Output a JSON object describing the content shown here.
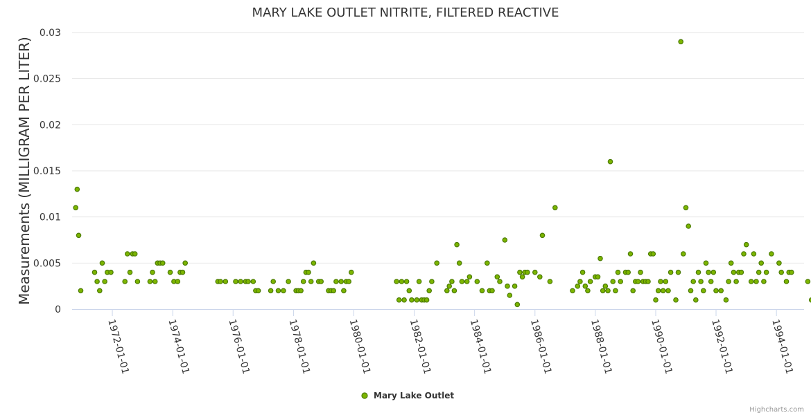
{
  "chart_data": {
    "type": "scatter",
    "title": "MARY LAKE OUTLET NITRITE, FILTERED REACTIVE",
    "ylabel": "Measurements (MILLIGRAM PER LITER)",
    "xlabel": "",
    "ylim": [
      0,
      0.03
    ],
    "y_ticks": [
      "0",
      "0.005",
      "0.01",
      "0.015",
      "0.02",
      "0.025",
      "0.03"
    ],
    "x_ticks": [
      "1972-01-01",
      "1974-01-01",
      "1976-01-01",
      "1978-01-01",
      "1980-01-01",
      "1982-01-01",
      "1984-01-01",
      "1986-01-01",
      "1988-01-01",
      "1990-01-01",
      "1992-01-01",
      "1994-01-01"
    ],
    "xlim": [
      "1970-09-01",
      "1994-12-01"
    ],
    "grid": true,
    "legend_position": "bottom-center",
    "series": [
      {
        "name": "Mary Lake Outlet",
        "color": "#7cb500",
        "points": [
          [
            "1970-10-15",
            0.011
          ],
          [
            "1970-11-01",
            0.013
          ],
          [
            "1970-11-20",
            0.008
          ],
          [
            "1970-12-15",
            0.002
          ],
          [
            "1971-06-01",
            0.004
          ],
          [
            "1971-07-01",
            0.003
          ],
          [
            "1971-08-01",
            0.002
          ],
          [
            "1971-09-01",
            0.005
          ],
          [
            "1971-10-01",
            0.003
          ],
          [
            "1971-11-01",
            0.004
          ],
          [
            "1971-12-15",
            0.004
          ],
          [
            "1972-06-01",
            0.003
          ],
          [
            "1972-07-01",
            0.006
          ],
          [
            "1972-08-01",
            0.004
          ],
          [
            "1972-09-01",
            0.006
          ],
          [
            "1972-10-01",
            0.006
          ],
          [
            "1972-11-01",
            0.003
          ],
          [
            "1973-04-01",
            0.003
          ],
          [
            "1973-05-01",
            0.004
          ],
          [
            "1973-06-01",
            0.003
          ],
          [
            "1973-07-01",
            0.005
          ],
          [
            "1973-08-01",
            0.005
          ],
          [
            "1973-09-01",
            0.005
          ],
          [
            "1973-12-01",
            0.004
          ],
          [
            "1974-01-15",
            0.003
          ],
          [
            "1974-03-01",
            0.003
          ],
          [
            "1974-04-01",
            0.004
          ],
          [
            "1974-05-01",
            0.004
          ],
          [
            "1974-06-01",
            0.005
          ],
          [
            "1975-07-01",
            0.003
          ],
          [
            "1975-08-01",
            0.003
          ],
          [
            "1975-10-01",
            0.003
          ],
          [
            "1976-02-01",
            0.003
          ],
          [
            "1976-04-01",
            0.003
          ],
          [
            "1976-06-01",
            0.003
          ],
          [
            "1976-07-01",
            0.003
          ],
          [
            "1976-09-01",
            0.003
          ],
          [
            "1976-10-01",
            0.002
          ],
          [
            "1976-11-01",
            0.002
          ],
          [
            "1977-04-01",
            0.002
          ],
          [
            "1977-05-01",
            0.003
          ],
          [
            "1977-07-01",
            0.002
          ],
          [
            "1977-09-01",
            0.002
          ],
          [
            "1977-11-01",
            0.003
          ],
          [
            "1978-02-01",
            0.002
          ],
          [
            "1978-03-01",
            0.002
          ],
          [
            "1978-04-01",
            0.002
          ],
          [
            "1978-05-01",
            0.003
          ],
          [
            "1978-06-01",
            0.004
          ],
          [
            "1978-07-01",
            0.004
          ],
          [
            "1978-08-01",
            0.003
          ],
          [
            "1978-09-01",
            0.005
          ],
          [
            "1978-11-01",
            0.003
          ],
          [
            "1978-12-01",
            0.003
          ],
          [
            "1979-03-01",
            0.002
          ],
          [
            "1979-04-01",
            0.002
          ],
          [
            "1979-05-01",
            0.002
          ],
          [
            "1979-06-01",
            0.003
          ],
          [
            "1979-08-01",
            0.003
          ],
          [
            "1979-09-01",
            0.002
          ],
          [
            "1979-10-01",
            0.003
          ],
          [
            "1979-11-01",
            0.003
          ],
          [
            "1979-12-01",
            0.004
          ],
          [
            "1981-06-01",
            0.003
          ],
          [
            "1981-07-01",
            0.001
          ],
          [
            "1981-08-01",
            0.003
          ],
          [
            "1981-09-01",
            0.001
          ],
          [
            "1981-10-01",
            0.003
          ],
          [
            "1981-11-01",
            0.002
          ],
          [
            "1981-12-01",
            0.001
          ],
          [
            "1982-02-01",
            0.001
          ],
          [
            "1982-03-01",
            0.003
          ],
          [
            "1982-04-01",
            0.001
          ],
          [
            "1982-05-01",
            0.001
          ],
          [
            "1982-06-01",
            0.001
          ],
          [
            "1982-07-01",
            0.002
          ],
          [
            "1982-08-01",
            0.003
          ],
          [
            "1982-10-01",
            0.005
          ],
          [
            "1983-02-01",
            0.002
          ],
          [
            "1983-03-01",
            0.0025
          ],
          [
            "1983-04-01",
            0.003
          ],
          [
            "1983-05-01",
            0.002
          ],
          [
            "1983-06-01",
            0.007
          ],
          [
            "1983-07-01",
            0.005
          ],
          [
            "1983-08-01",
            0.003
          ],
          [
            "1983-10-01",
            0.003
          ],
          [
            "1983-11-01",
            0.0035
          ],
          [
            "1984-02-01",
            0.003
          ],
          [
            "1984-04-01",
            0.002
          ],
          [
            "1984-06-01",
            0.005
          ],
          [
            "1984-07-01",
            0.002
          ],
          [
            "1984-08-01",
            0.002
          ],
          [
            "1984-10-01",
            0.0035
          ],
          [
            "1984-11-01",
            0.003
          ],
          [
            "1985-01-01",
            0.0075
          ],
          [
            "1985-02-01",
            0.0025
          ],
          [
            "1985-03-01",
            0.0015
          ],
          [
            "1985-05-01",
            0.0025
          ],
          [
            "1985-06-01",
            0.0005
          ],
          [
            "1985-07-01",
            0.004
          ],
          [
            "1985-08-01",
            0.0035
          ],
          [
            "1985-09-01",
            0.004
          ],
          [
            "1985-10-01",
            0.004
          ],
          [
            "1986-01-01",
            0.004
          ],
          [
            "1986-03-01",
            0.0035
          ],
          [
            "1986-04-01",
            0.008
          ],
          [
            "1986-07-01",
            0.003
          ],
          [
            "1986-09-01",
            0.011
          ],
          [
            "1987-04-01",
            0.002
          ],
          [
            "1987-06-01",
            0.0025
          ],
          [
            "1987-07-01",
            0.003
          ],
          [
            "1987-08-01",
            0.004
          ],
          [
            "1987-09-01",
            0.0025
          ],
          [
            "1987-10-01",
            0.002
          ],
          [
            "1987-11-01",
            0.003
          ],
          [
            "1988-01-01",
            0.0035
          ],
          [
            "1988-02-01",
            0.0035
          ],
          [
            "1988-03-01",
            0.0055
          ],
          [
            "1988-04-01",
            0.002
          ],
          [
            "1988-05-01",
            0.0025
          ],
          [
            "1988-06-01",
            0.002
          ],
          [
            "1988-07-01",
            0.016
          ],
          [
            "1988-08-01",
            0.003
          ],
          [
            "1988-09-01",
            0.002
          ],
          [
            "1988-10-01",
            0.004
          ],
          [
            "1988-11-01",
            0.003
          ],
          [
            "1989-01-01",
            0.004
          ],
          [
            "1989-02-01",
            0.004
          ],
          [
            "1989-03-01",
            0.006
          ],
          [
            "1989-04-01",
            0.002
          ],
          [
            "1989-05-01",
            0.003
          ],
          [
            "1989-06-01",
            0.003
          ],
          [
            "1989-07-01",
            0.004
          ],
          [
            "1989-08-01",
            0.003
          ],
          [
            "1989-09-01",
            0.003
          ],
          [
            "1989-10-01",
            0.003
          ],
          [
            "1989-11-01",
            0.006
          ],
          [
            "1989-12-01",
            0.006
          ],
          [
            "1990-01-01",
            0.001
          ],
          [
            "1990-02-01",
            0.002
          ],
          [
            "1990-03-01",
            0.003
          ],
          [
            "1990-04-01",
            0.002
          ],
          [
            "1990-05-01",
            0.003
          ],
          [
            "1990-06-01",
            0.002
          ],
          [
            "1990-07-01",
            0.004
          ],
          [
            "1990-09-01",
            0.001
          ],
          [
            "1990-10-01",
            0.004
          ],
          [
            "1990-11-01",
            0.029
          ],
          [
            "1990-12-01",
            0.006
          ],
          [
            "1991-01-01",
            0.011
          ],
          [
            "1991-02-01",
            0.009
          ],
          [
            "1991-03-01",
            0.002
          ],
          [
            "1991-04-01",
            0.003
          ],
          [
            "1991-05-01",
            0.001
          ],
          [
            "1991-06-01",
            0.004
          ],
          [
            "1991-07-01",
            0.003
          ],
          [
            "1991-08-01",
            0.002
          ],
          [
            "1991-09-01",
            0.005
          ],
          [
            "1991-10-01",
            0.004
          ],
          [
            "1991-11-01",
            0.003
          ],
          [
            "1991-12-01",
            0.004
          ],
          [
            "1992-01-01",
            0.002
          ],
          [
            "1992-03-01",
            0.002
          ],
          [
            "1992-05-01",
            0.001
          ],
          [
            "1992-06-01",
            0.003
          ],
          [
            "1992-07-01",
            0.005
          ],
          [
            "1992-08-01",
            0.004
          ],
          [
            "1992-09-01",
            0.003
          ],
          [
            "1992-10-01",
            0.004
          ],
          [
            "1992-11-01",
            0.004
          ],
          [
            "1992-12-01",
            0.006
          ],
          [
            "1993-01-01",
            0.007
          ],
          [
            "1993-03-01",
            0.003
          ],
          [
            "1993-04-01",
            0.006
          ],
          [
            "1993-05-01",
            0.003
          ],
          [
            "1993-06-01",
            0.004
          ],
          [
            "1993-07-01",
            0.005
          ],
          [
            "1993-08-01",
            0.003
          ],
          [
            "1993-09-01",
            0.004
          ],
          [
            "1993-11-01",
            0.006
          ],
          [
            "1994-02-01",
            0.005
          ],
          [
            "1994-03-01",
            0.004
          ],
          [
            "1994-05-01",
            0.003
          ],
          [
            "1994-06-01",
            0.004
          ],
          [
            "1994-07-01",
            0.004
          ],
          [
            "1995-01-15",
            0.003
          ],
          [
            "1995-03-01",
            0.001
          ]
        ]
      }
    ]
  },
  "credits": "Highcharts.com"
}
